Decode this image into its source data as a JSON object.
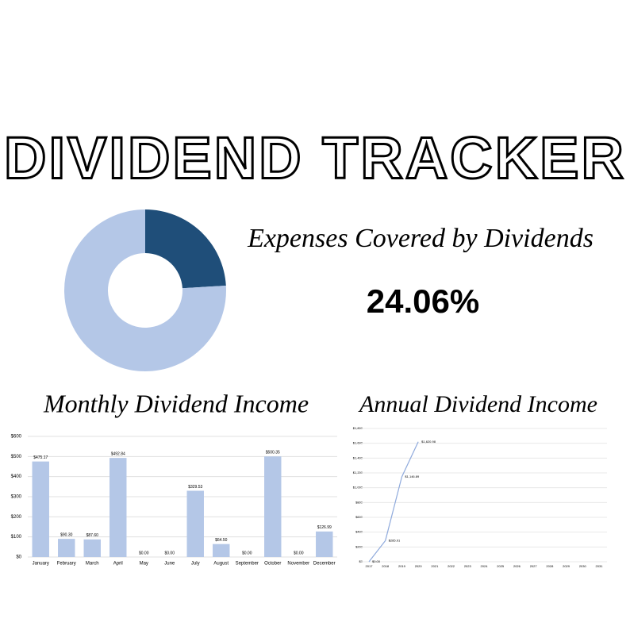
{
  "title": "DIVIDEND TRACKER",
  "chart_data": [
    {
      "type": "pie",
      "title": "Expenses Covered by Dividends",
      "values": [
        24.06,
        75.94
      ],
      "value_labels": [
        "24.06%",
        null
      ],
      "colors": [
        "#1f4e79",
        "#b4c7e7"
      ],
      "donut": true
    },
    {
      "type": "bar",
      "title": "Monthly Dividend Income",
      "categories": [
        "January",
        "February",
        "March",
        "April",
        "May",
        "June",
        "July",
        "August",
        "September",
        "October",
        "November",
        "December"
      ],
      "values": [
        475.17,
        90.3,
        87.6,
        492.84,
        0,
        0,
        329.53,
        64.5,
        0,
        500.35,
        0,
        126.99
      ],
      "value_labels": [
        "$475.17",
        "$90.30",
        "$87.60",
        "$492.84",
        "$0.00",
        "$0.00",
        "$329.53",
        "$64.50",
        "$0.00",
        "$500.35",
        "$0.00",
        "$126.99"
      ],
      "color": "#b4c7e7",
      "ylim": [
        0,
        600
      ],
      "grid": true,
      "yticks": [
        {
          "value": 0,
          "label": "$0"
        },
        {
          "value": 100,
          "label": "$100"
        },
        {
          "value": 200,
          "label": "$200"
        },
        {
          "value": 300,
          "label": "$300"
        },
        {
          "value": 400,
          "label": "$400"
        },
        {
          "value": 500,
          "label": "$500"
        },
        {
          "value": 600,
          "label": "$600"
        }
      ]
    },
    {
      "type": "line",
      "title": "Annual Dividend Income",
      "x": [
        2017,
        2018,
        2019,
        2020,
        2021,
        2022,
        2023,
        2024,
        2025,
        2026,
        2027,
        2028,
        2029,
        2030,
        2031
      ],
      "values": [
        0,
        285.91,
        1146.89,
        1620.98,
        null,
        null,
        null,
        null,
        null,
        null,
        null,
        null,
        null,
        null,
        null
      ],
      "value_labels": [
        "$0.00",
        "$285.91",
        "$1,146.89",
        "$1,620.98",
        null,
        null,
        null,
        null,
        null,
        null,
        null,
        null,
        null,
        null,
        null
      ],
      "color": "#8faadc",
      "xlim": [
        2017,
        2031
      ],
      "ylim": [
        0,
        1800
      ],
      "grid": true,
      "yticks": [
        {
          "value": 0,
          "label": "$0"
        },
        {
          "value": 200,
          "label": "$200"
        },
        {
          "value": 400,
          "label": "$400"
        },
        {
          "value": 600,
          "label": "$600"
        },
        {
          "value": 800,
          "label": "$800"
        },
        {
          "value": 1000,
          "label": "$1,000"
        },
        {
          "value": 1200,
          "label": "$1,200"
        },
        {
          "value": 1400,
          "label": "$1,400"
        },
        {
          "value": 1600,
          "label": "$1,600"
        },
        {
          "value": 1800,
          "label": "$1,800"
        }
      ]
    }
  ]
}
